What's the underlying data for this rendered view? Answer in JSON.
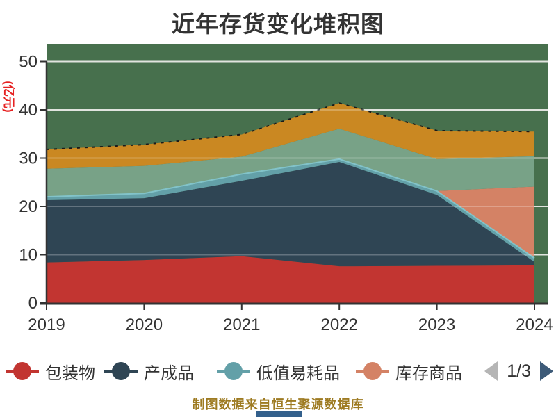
{
  "page": {
    "title": "近年存货变化堆积图",
    "caption": "制图数据来自恒生聚源数据库"
  },
  "colors": {
    "title_text": "#333333",
    "axis_line": "#333333",
    "tick_label": "#333333",
    "plot_background": "#47704d",
    "gridline": "#d7dbd4",
    "y_unit_label": "#e62222",
    "caption_text": "#9e7b22",
    "bottom_logo_bar": "#33608c",
    "total_edge_line": "#1a1a1a",
    "teal_edge_line": "#82c3c9"
  },
  "chart_data": {
    "type": "area",
    "stacked": true,
    "title": "近年存货变化堆积图",
    "x_labels": [
      "2019",
      "2020",
      "2021",
      "2022",
      "2023",
      "2024"
    ],
    "xlabel": "",
    "ylabel": "(亿元)",
    "ylim": [
      0,
      50
    ],
    "y_ticks": [
      0,
      10,
      20,
      30,
      40,
      50
    ],
    "grid": true,
    "legend_position": "bottom",
    "series": [
      {
        "name": "包装物",
        "color": "#c23531",
        "values": [
          8.4,
          8.9,
          9.7,
          7.6,
          7.7,
          7.8
        ]
      },
      {
        "name": "产成品",
        "color": "#2f4554",
        "values": [
          12.9,
          12.8,
          15.6,
          21.6,
          14.7,
          0.7
        ]
      },
      {
        "name": "低值易耗品",
        "color": "#63a0a8",
        "values": [
          0.7,
          1.0,
          1.4,
          0.6,
          0.8,
          0.8
        ]
      },
      {
        "name": "库存商品",
        "color": "#d48265",
        "values": [
          0,
          0,
          0,
          0,
          0,
          14.8
        ]
      },
      {
        "name": "",
        "color": "#78a287",
        "values": [
          5.8,
          5.7,
          3.6,
          6.3,
          6.6,
          6.3
        ]
      },
      {
        "name": "",
        "color": "#ca8822",
        "values": [
          4.0,
          4.4,
          4.6,
          5.3,
          5.9,
          5.1
        ]
      }
    ]
  },
  "legend": {
    "items": [
      {
        "label": "包装物",
        "color": "#c23531"
      },
      {
        "label": "产成品",
        "color": "#2f4554"
      },
      {
        "label": "低值易耗品",
        "color": "#63a0a8"
      },
      {
        "label": "库存商品",
        "color": "#d48265"
      }
    ],
    "page_indicator": "1/3",
    "prev_arrow_color": "#b5b5b5",
    "next_arrow_color": "#3d5a78"
  }
}
